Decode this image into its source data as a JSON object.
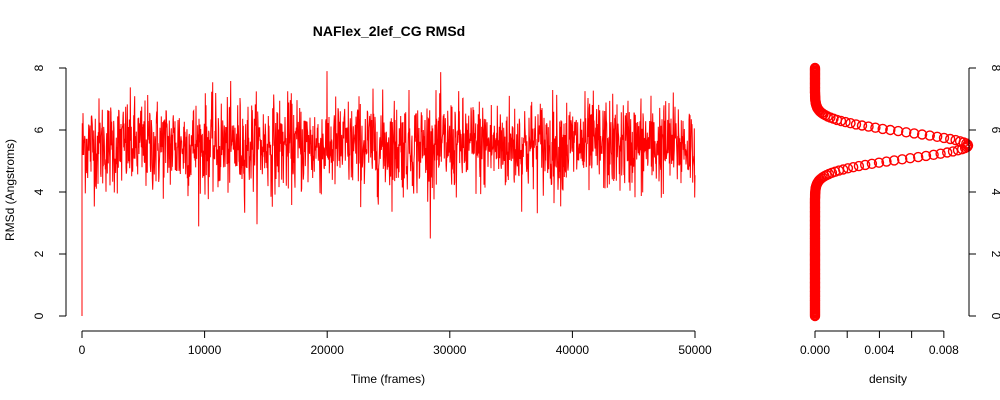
{
  "chart_data": [
    {
      "type": "line",
      "title": "NAFlex_2lef_CG RMSd",
      "xlabel": "Time (frames)",
      "ylabel": "RMSd (Angstroms)",
      "xlim": [
        0,
        50000
      ],
      "ylim": [
        0,
        8
      ],
      "x_ticks": [
        "0",
        "10000",
        "20000",
        "30000",
        "40000",
        "50000"
      ],
      "y_ticks": [
        "0",
        "2",
        "4",
        "6",
        "8"
      ],
      "grid": false,
      "color": "#ff0000",
      "series": [
        {
          "summary": {
            "frames": 50000,
            "start_value": 0,
            "mean": 5.5,
            "typical_range": [
              4.0,
              7.0
            ],
            "min": 2.5,
            "max": 7.9
          }
        }
      ]
    },
    {
      "type": "scatter",
      "title": "",
      "xlabel": "density",
      "ylabel": "",
      "xlim": [
        0,
        0.0095
      ],
      "ylim": [
        0,
        8
      ],
      "x_ticks": [
        "0.000",
        "0.004",
        "0.008"
      ],
      "y_ticks": [
        "0",
        "2",
        "4",
        "6",
        "8"
      ],
      "grid": false,
      "color": "#ff0000",
      "orientation": "vertical",
      "series": [
        {
          "peak": {
            "y": 5.5,
            "density": 0.0095
          }
        }
      ]
    }
  ]
}
